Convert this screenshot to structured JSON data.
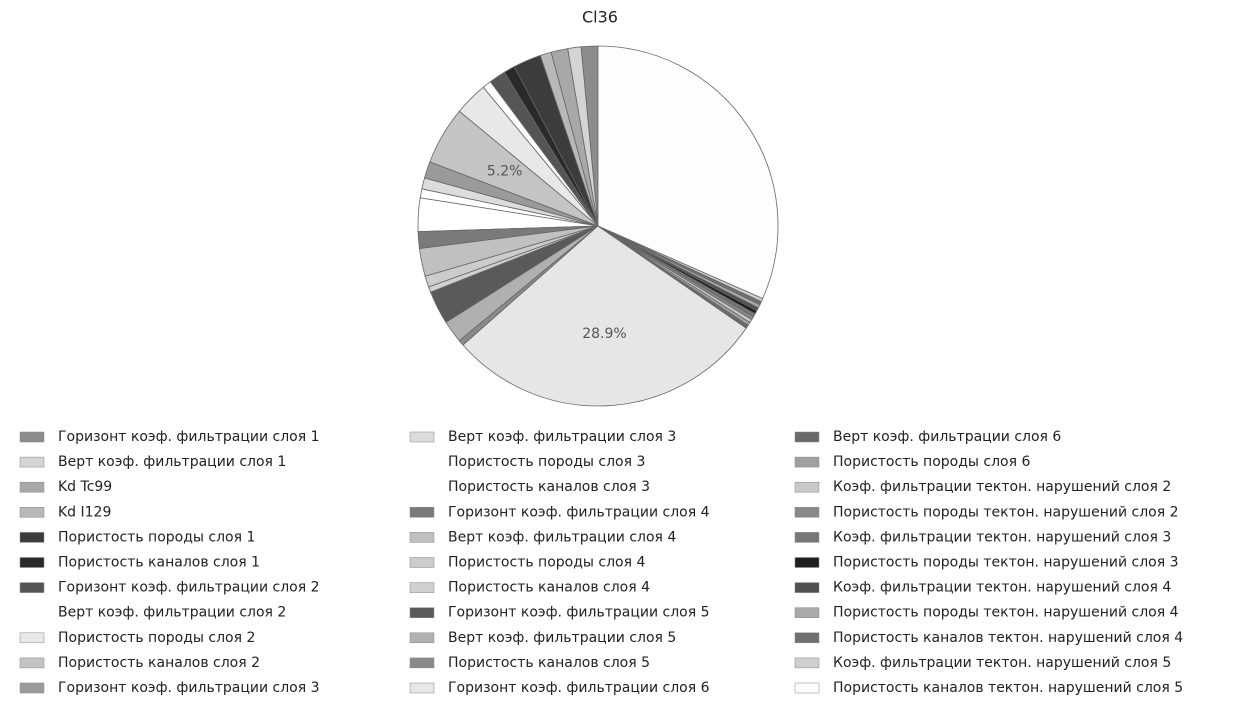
{
  "chart_data": {
    "type": "pie",
    "title": "Cl36",
    "categories": [
      "Горизонт коэф. фильтрации слоя 1",
      "Верт коэф. фильтрации слоя 1",
      "Kd Tc99",
      "Kd I129",
      "Пористость породы слоя 1",
      "Пористость каналов слоя 1",
      "Горизонт коэф. фильтрации слоя 2",
      "Верт коэф. фильтрации слоя 2",
      "Пористость породы слоя 2",
      "Пористость каналов слоя 2",
      "Горизонт коэф. фильтрации слоя 3",
      "Верт коэф. фильтрации слоя 3",
      "Пористость породы слоя 3",
      "Пористость каналов слоя 3",
      "Горизонт коэф. фильтрации слоя 4",
      "Верт коэф. фильтрации слоя 4",
      "Пористость породы слоя 4",
      "Пористость каналов слоя 4",
      "Горизонт коэф. фильтрации слоя 5",
      "Верт коэф. фильтрации слоя 5",
      "Пористость каналов слоя 5",
      "Горизонт коэф. фильтрации слоя 6",
      "Верт коэф. фильтрации слоя 6",
      "Пористость породы слоя 6",
      "Коэф. фильтрации тектон. нарушений слоя 2",
      "Пористость породы тектон. нарушений слоя 2",
      "Коэф. фильтрации тектон. нарушений слоя 3",
      "Пористость породы тектон. нарушений слоя 3",
      "Коэф. фильтрации тектон. нарушений слоя 4",
      "Пористость породы тектон. нарушений слоя 4",
      "Пористость каналов тектон. нарушений слоя 4",
      "Коэф. фильтрации тектон. нарушений слоя 5",
      "Пористость каналов тектон. нарушений слоя 5"
    ],
    "values": [
      1.5,
      1.2,
      1.5,
      1.0,
      2.5,
      1.0,
      1.5,
      0.8,
      3.0,
      5.2,
      1.5,
      1.0,
      0.8,
      3.0,
      1.5,
      2.5,
      1.0,
      0.5,
      3.0,
      2.0,
      0.5,
      28.9,
      0.3,
      0.3,
      0.3,
      0.3,
      0.3,
      0.3,
      0.3,
      0.3,
      0.3,
      0.3,
      31.6
    ],
    "value_labels": [
      null,
      null,
      null,
      null,
      null,
      null,
      null,
      null,
      null,
      "5.2%",
      null,
      null,
      null,
      null,
      null,
      null,
      null,
      null,
      null,
      null,
      null,
      "28.9%",
      null,
      null,
      null,
      null,
      null,
      null,
      null,
      null,
      null,
      null,
      null
    ],
    "colors": [
      "#8c8c8c",
      "#d4d4d4",
      "#a8a8a8",
      "#b8b8b8",
      "#3c3c3c",
      "#2a2a2a",
      "#555555",
      "#ffffff",
      "#e8e8e8",
      "#c4c4c4",
      "#9a9a9a",
      "#dcdcdc",
      "#ffffff",
      "#ffffff",
      "#7a7a7a",
      "#c0c0c0",
      "#cccccc",
      "#d0d0d0",
      "#5a5a5a",
      "#b0b0b0",
      "#8a8a8a",
      "#e6e6e6",
      "#6a6a6a",
      "#a0a0a0",
      "#c8c8c8",
      "#888888",
      "#777777",
      "#1e1e1e",
      "#505050",
      "#aaaaaa",
      "#707070",
      "#cfcfcf",
      "#fdfdfd"
    ]
  }
}
